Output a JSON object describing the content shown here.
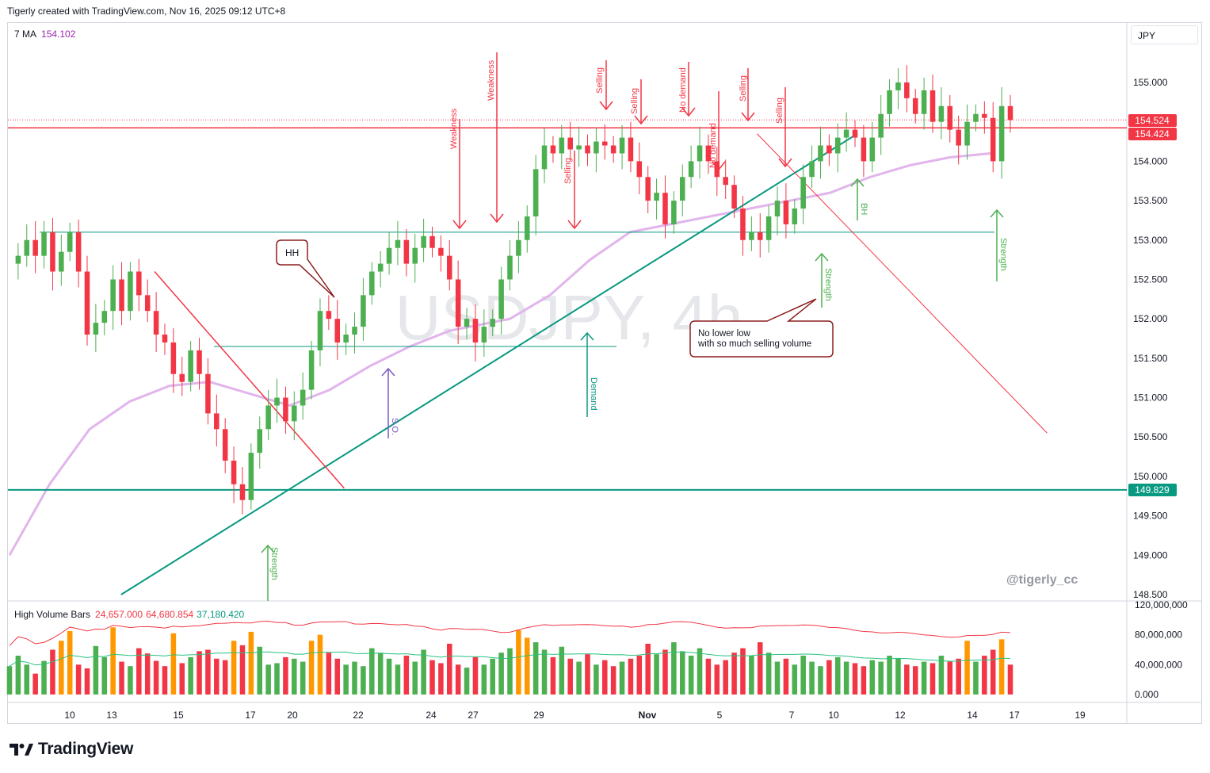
{
  "header": {
    "text": "Tigerly created with TradingView.com, Nov 16, 2025 09:12 UTC+8"
  },
  "indicator": {
    "name": "7 MA",
    "value": "154.102"
  },
  "volume_indicator": {
    "name": "High Volume Bars",
    "v1": "24,657.000",
    "v2": "64,680.854",
    "v3": "37,180.420"
  },
  "currency": "JPY",
  "symbol_watermark": "USDJPY, 4h",
  "author": "@tigerly_cc",
  "brand": "TradingView",
  "price_badges": {
    "last": "154.524",
    "line": "154.424",
    "support": "149.829"
  },
  "colors": {
    "up": "#4caf50",
    "down": "#f23645",
    "teal": "#089981",
    "ma": "#e1b5ec",
    "orange": "#ff9800"
  },
  "annotations": {
    "hh": "HH",
    "note_line1": "No lower low",
    "note_line2": "with so much selling volume",
    "weakness": "Weakness",
    "selling": "Selling",
    "no_demand": "No demand",
    "strength": "Strength",
    "demand": "Demand",
    "so": "S.O.",
    "bh": "BH"
  },
  "chart_data": {
    "type": "candlestick",
    "title": "USDJPY, 4h",
    "x_ticks": [
      "10",
      "13",
      "15",
      "17",
      "20",
      "22",
      "24",
      "27",
      "29",
      "Nov",
      "5",
      "7",
      "10",
      "12",
      "14",
      "17",
      "19"
    ],
    "y_ticks": [
      "155.000",
      "154.500",
      "154.000",
      "153.500",
      "153.000",
      "152.500",
      "152.000",
      "151.500",
      "151.000",
      "150.500",
      "150.000",
      "149.500",
      "149.000",
      "148.500"
    ],
    "ylim": [
      148.45,
      155.65
    ],
    "volume_ticks": [
      "120,000,000",
      "80,000,000",
      "40,000,000",
      "0.000"
    ],
    "volume_ylim": [
      0,
      120000000
    ],
    "close_path": [
      152.7,
      152.8,
      153.0,
      152.8,
      153.1,
      152.6,
      152.85,
      153.1,
      152.6,
      151.8,
      151.95,
      152.1,
      152.5,
      152.1,
      152.6,
      152.3,
      152.1,
      151.8,
      151.7,
      151.3,
      151.2,
      151.6,
      151.3,
      150.8,
      150.6,
      150.2,
      149.9,
      149.7,
      150.3,
      150.6,
      150.9,
      151.0,
      150.7,
      150.9,
      151.1,
      151.6,
      152.1,
      152.0,
      151.7,
      151.8,
      151.9,
      152.3,
      152.6,
      152.7,
      152.9,
      153.0,
      152.7,
      152.9,
      153.05,
      152.9,
      152.8,
      152.5,
      151.9,
      152.0,
      151.7,
      151.9,
      152.0,
      152.5,
      152.8,
      153.0,
      153.3,
      153.9,
      154.2,
      154.1,
      154.3,
      154.15,
      154.2,
      154.1,
      154.25,
      154.2,
      154.1,
      154.3,
      154.0,
      153.8,
      153.5,
      153.6,
      153.2,
      153.5,
      153.8,
      154.0,
      154.2,
      154.0,
      153.8,
      153.7,
      153.4,
      153.0,
      153.1,
      153.0,
      153.3,
      153.5,
      153.2,
      153.4,
      153.8,
      154.0,
      154.2,
      154.1,
      154.3,
      154.4,
      154.3,
      154.0,
      154.3,
      154.6,
      154.9,
      155.0,
      154.8,
      154.6,
      154.9,
      154.5,
      154.7,
      154.4,
      154.2,
      154.5,
      154.6,
      154.55,
      154.0,
      154.7,
      154.524
    ],
    "volume_path": [
      38,
      52,
      40,
      28,
      45,
      60,
      72,
      85,
      40,
      35,
      65,
      50,
      90,
      44,
      38,
      62,
      55,
      45,
      38,
      82,
      42,
      50,
      58,
      60,
      48,
      46,
      72,
      66,
      84,
      64,
      40,
      42,
      50,
      48,
      44,
      72,
      80,
      56,
      48,
      40,
      44,
      38,
      62,
      56,
      48,
      40,
      52,
      44,
      60,
      46,
      42,
      68,
      40,
      36,
      50,
      40,
      48,
      56,
      62,
      86,
      76,
      70,
      60,
      50,
      64,
      48,
      44,
      54,
      40,
      46,
      38,
      44,
      48,
      52,
      68,
      54,
      60,
      70,
      58,
      52,
      62,
      48,
      40,
      46,
      56,
      62,
      52,
      70,
      56,
      44,
      48,
      40,
      52,
      44,
      38,
      46,
      50,
      44,
      42,
      38,
      46,
      44,
      52,
      48,
      40,
      38,
      44,
      42,
      52,
      44,
      48,
      72,
      44,
      52,
      60,
      74,
      40
    ],
    "horizontal_levels": [
      154.424,
      153.1,
      151.65,
      149.829
    ],
    "moving_average": {
      "name": "7 MA",
      "last_value": 154.102,
      "points": [
        [
          0,
          149.0
        ],
        [
          0.04,
          149.9
        ],
        [
          0.08,
          150.6
        ],
        [
          0.12,
          150.95
        ],
        [
          0.16,
          151.15
        ],
        [
          0.2,
          151.2
        ],
        [
          0.24,
          151.05
        ],
        [
          0.28,
          150.9
        ],
        [
          0.32,
          151.1
        ],
        [
          0.36,
          151.4
        ],
        [
          0.4,
          151.65
        ],
        [
          0.44,
          151.85
        ],
        [
          0.48,
          151.95
        ],
        [
          0.5,
          152.0
        ],
        [
          0.54,
          152.3
        ],
        [
          0.58,
          152.75
        ],
        [
          0.62,
          153.1
        ],
        [
          0.66,
          153.2
        ],
        [
          0.7,
          153.3
        ],
        [
          0.74,
          153.4
        ],
        [
          0.78,
          153.5
        ],
        [
          0.82,
          153.6
        ],
        [
          0.86,
          153.8
        ],
        [
          0.9,
          153.95
        ],
        [
          0.94,
          154.05
        ],
        [
          0.98,
          154.1
        ]
      ]
    },
    "trendlines": [
      {
        "name": "rising-support",
        "from": [
          0.1,
          148.5
        ],
        "to": [
          0.76,
          154.35
        ]
      },
      {
        "name": "falling-resistance-1",
        "from": [
          0.13,
          152.6
        ],
        "to": [
          0.3,
          149.85
        ]
      },
      {
        "name": "falling-resistance-2",
        "from": [
          0.67,
          154.35
        ],
        "to": [
          0.93,
          150.55
        ]
      }
    ]
  }
}
